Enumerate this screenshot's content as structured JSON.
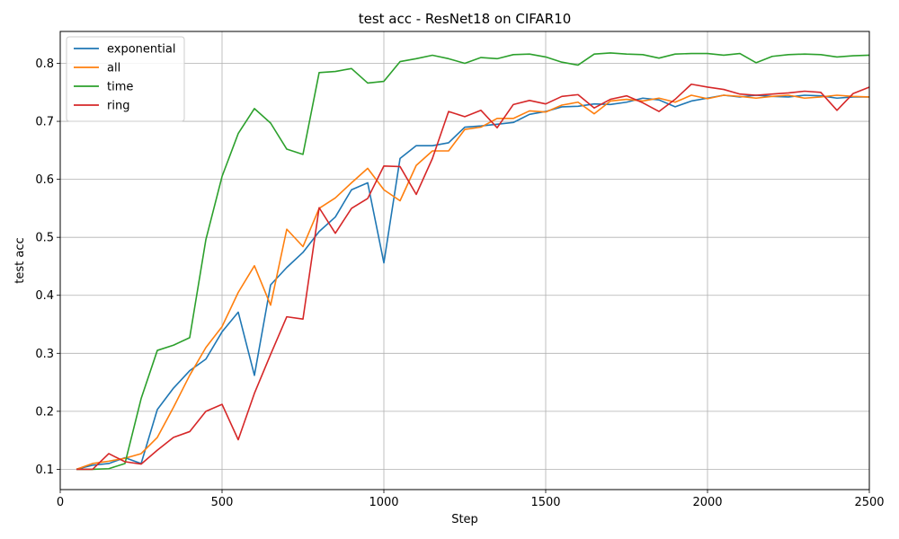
{
  "chart_data": {
    "type": "line",
    "title": "test acc - ResNet18 on CIFAR10",
    "xlabel": "Step",
    "ylabel": "test acc",
    "xlim": [
      0,
      2500
    ],
    "ylim": [
      0.065,
      0.855
    ],
    "xticks": [
      0,
      500,
      1000,
      1500,
      2000,
      2500
    ],
    "yticks": [
      0.1,
      0.2,
      0.3,
      0.4,
      0.5,
      0.6,
      0.7,
      0.8
    ],
    "grid": true,
    "legend_position": "top-left",
    "x": [
      50,
      100,
      150,
      200,
      250,
      300,
      350,
      400,
      450,
      500,
      550,
      600,
      650,
      700,
      750,
      800,
      850,
      900,
      950,
      1000,
      1050,
      1100,
      1150,
      1200,
      1250,
      1300,
      1350,
      1400,
      1450,
      1500,
      1550,
      1600,
      1650,
      1700,
      1750,
      1800,
      1850,
      1900,
      1950,
      2000,
      2050,
      2100,
      2150,
      2200,
      2250,
      2300,
      2350,
      2400,
      2450,
      2500
    ],
    "series": [
      {
        "name": "exponential",
        "color": "#1f77b4",
        "values": [
          0.1,
          0.107,
          0.11,
          0.12,
          0.11,
          0.203,
          0.24,
          0.27,
          0.29,
          0.337,
          0.371,
          0.262,
          0.418,
          0.448,
          0.474,
          0.51,
          0.535,
          0.582,
          0.594,
          0.456,
          0.636,
          0.658,
          0.658,
          0.663,
          0.69,
          0.692,
          0.695,
          0.698,
          0.712,
          0.717,
          0.725,
          0.726,
          0.73,
          0.729,
          0.733,
          0.74,
          0.737,
          0.725,
          0.735,
          0.74,
          0.745,
          0.742,
          0.745,
          0.743,
          0.742,
          0.745,
          0.744,
          0.74,
          0.742,
          0.742
        ]
      },
      {
        "name": "all",
        "color": "#ff7f0e",
        "values": [
          0.1,
          0.11,
          0.114,
          0.119,
          0.127,
          0.155,
          0.207,
          0.262,
          0.31,
          0.346,
          0.405,
          0.451,
          0.383,
          0.514,
          0.484,
          0.55,
          0.568,
          0.594,
          0.619,
          0.582,
          0.563,
          0.624,
          0.649,
          0.649,
          0.686,
          0.69,
          0.705,
          0.705,
          0.718,
          0.716,
          0.728,
          0.733,
          0.713,
          0.735,
          0.738,
          0.735,
          0.74,
          0.733,
          0.745,
          0.739,
          0.745,
          0.743,
          0.74,
          0.743,
          0.745,
          0.74,
          0.742,
          0.745,
          0.743,
          0.742
        ]
      },
      {
        "name": "time",
        "color": "#2ca02c",
        "values": [
          0.1,
          0.1,
          0.101,
          0.11,
          0.222,
          0.305,
          0.314,
          0.327,
          0.496,
          0.605,
          0.679,
          0.722,
          0.697,
          0.652,
          0.643,
          0.784,
          0.786,
          0.791,
          0.766,
          0.769,
          0.803,
          0.808,
          0.814,
          0.808,
          0.8,
          0.81,
          0.808,
          0.815,
          0.816,
          0.811,
          0.802,
          0.797,
          0.816,
          0.818,
          0.816,
          0.815,
          0.809,
          0.816,
          0.817,
          0.817,
          0.814,
          0.817,
          0.801,
          0.812,
          0.815,
          0.816,
          0.815,
          0.811,
          0.813,
          0.814
        ]
      },
      {
        "name": "ring",
        "color": "#d62728",
        "values": [
          0.1,
          0.1,
          0.127,
          0.113,
          0.109,
          0.133,
          0.155,
          0.165,
          0.2,
          0.212,
          0.151,
          0.231,
          0.298,
          0.363,
          0.359,
          0.551,
          0.507,
          0.55,
          0.567,
          0.623,
          0.622,
          0.574,
          0.636,
          0.717,
          0.708,
          0.719,
          0.689,
          0.729,
          0.736,
          0.73,
          0.743,
          0.746,
          0.723,
          0.738,
          0.744,
          0.732,
          0.717,
          0.738,
          0.764,
          0.759,
          0.755,
          0.747,
          0.745,
          0.747,
          0.749,
          0.752,
          0.75,
          0.719,
          0.748,
          0.759
        ]
      }
    ]
  }
}
